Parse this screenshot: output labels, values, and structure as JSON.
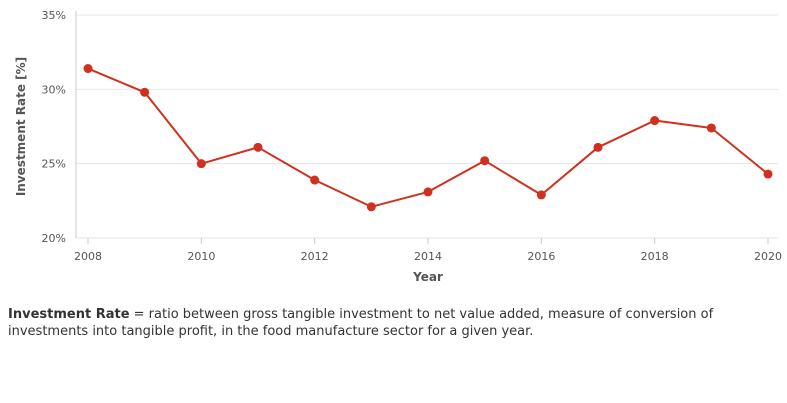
{
  "chart_data": {
    "type": "line",
    "xlabel": "Year",
    "ylabel": "Investment Rate [%]",
    "x": [
      2008,
      2009,
      2010,
      2011,
      2012,
      2013,
      2014,
      2015,
      2016,
      2017,
      2018,
      2019,
      2020
    ],
    "series": [
      {
        "values": [
          31.4,
          29.8,
          25.0,
          26.1,
          23.9,
          22.1,
          23.1,
          25.2,
          22.9,
          26.1,
          27.9,
          27.4,
          24.3
        ]
      }
    ],
    "ylim": [
      20,
      35
    ],
    "y_ticks": [
      20,
      25,
      30,
      35
    ],
    "y_tick_labels": [
      "20%",
      "25%",
      "30%",
      "35%"
    ],
    "x_ticks": [
      2008,
      2010,
      2012,
      2014,
      2016,
      2018,
      2020
    ],
    "x_tick_labels": [
      "2008",
      "2010",
      "2012",
      "2014",
      "2016",
      "2018",
      "2020"
    ],
    "grid": true,
    "line_color": "#d0301e",
    "grid_color": "#e6e6e6"
  },
  "note": {
    "term": "Investment Rate",
    "text": " = ratio between gross tangible investment to net value added, measure of conversion of investments into tangible profit, in the food manufacture sector for a given year."
  }
}
